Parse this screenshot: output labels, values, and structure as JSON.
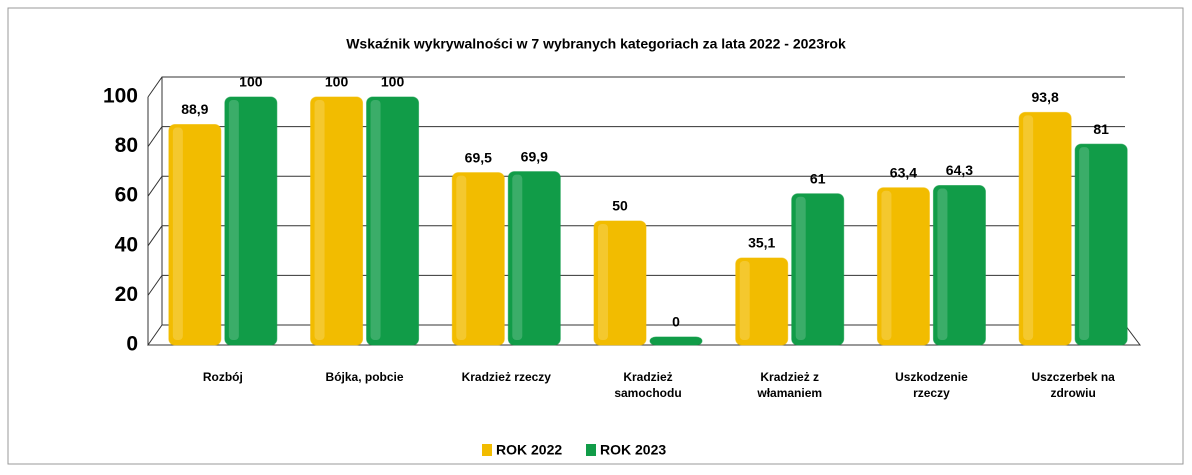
{
  "chart_data": {
    "type": "bar",
    "title": "Wskaźnik wykrywalności w 7 wybranych kategoriach za lata  2022 - 2023rok",
    "categories": [
      [
        "Rozbój"
      ],
      [
        "Bójka, pobcie"
      ],
      [
        "Kradzież rzeczy"
      ],
      [
        "Kradzież",
        "samochodu"
      ],
      [
        "Kradzież z",
        "włamaniem"
      ],
      [
        "Uszkodzenie",
        "rzeczy"
      ],
      [
        "Uszczerbek na",
        "zdrowiu"
      ]
    ],
    "series": [
      {
        "name": "ROK 2022",
        "color": "#f2bc00",
        "values": [
          88.9,
          100,
          69.5,
          50,
          35.1,
          63.4,
          93.8
        ],
        "value_labels": [
          "88,9",
          "100",
          "69,5",
          "50",
          "35,1",
          "63,4",
          "93,8"
        ]
      },
      {
        "name": "ROK 2023",
        "color": "#119c48",
        "values": [
          100,
          100,
          69.9,
          0,
          61,
          64.3,
          81
        ],
        "value_labels": [
          "100",
          "100",
          "69,9",
          "0",
          "61",
          "64,3",
          "81"
        ]
      }
    ],
    "ylim": [
      0,
      100
    ],
    "yticks": [
      0,
      20,
      40,
      60,
      80,
      100
    ],
    "grid": true,
    "legend": "bottom"
  }
}
